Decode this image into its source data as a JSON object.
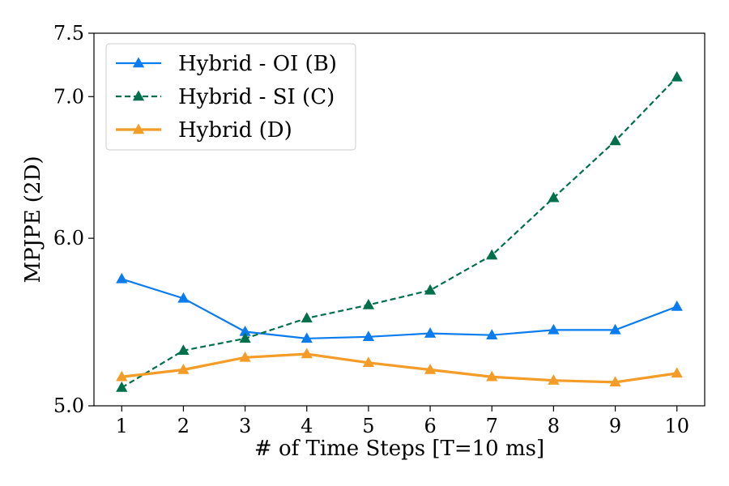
{
  "chart_data": {
    "type": "line",
    "xlabel": "# of Time Steps [T=10 ms]",
    "ylabel": "MPJPE (2D)",
    "x": [
      1,
      2,
      3,
      4,
      5,
      6,
      7,
      8,
      9,
      10
    ],
    "xticks": [
      "1",
      "2",
      "3",
      "4",
      "5",
      "6",
      "7",
      "8",
      "9",
      "10"
    ],
    "yticks": [
      "5.0",
      "6.0",
      "7.0",
      "7.5"
    ],
    "ylim": [
      5.0,
      7.5
    ],
    "yscale": "log",
    "grid": false,
    "legend_position": "top-left",
    "series": [
      {
        "name": "Hybrid - OI (B)",
        "color": "#0a7ced",
        "line_style": "solid",
        "marker": "triangle-up",
        "values": [
          5.74,
          5.62,
          5.42,
          5.38,
          5.39,
          5.41,
          5.4,
          5.43,
          5.43,
          5.57
        ]
      },
      {
        "name": "Hybrid - SI (C)",
        "color": "#00704a",
        "line_style": "dashed",
        "marker": "triangle-up",
        "values": [
          5.1,
          5.31,
          5.38,
          5.5,
          5.58,
          5.67,
          5.89,
          6.27,
          6.67,
          7.15
        ]
      },
      {
        "name": "Hybrid (D)",
        "color": "#f39c27",
        "line_style": "solid",
        "marker": "triangle-up",
        "values": [
          5.16,
          5.2,
          5.27,
          5.29,
          5.24,
          5.2,
          5.16,
          5.14,
          5.13,
          5.18
        ]
      }
    ]
  }
}
